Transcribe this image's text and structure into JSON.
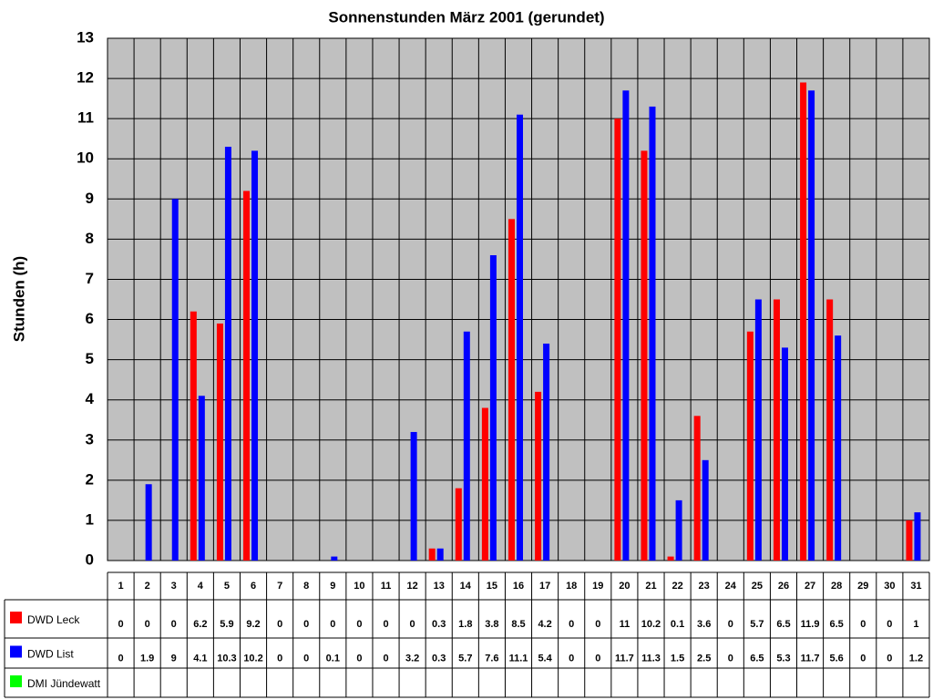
{
  "chart_data": {
    "type": "bar",
    "title": "Sonnenstunden März 2001 (gerundet)",
    "y_label": "Stunden (h)",
    "categories": [
      "1",
      "2",
      "3",
      "4",
      "5",
      "6",
      "7",
      "8",
      "9",
      "10",
      "11",
      "12",
      "13",
      "14",
      "15",
      "16",
      "17",
      "18",
      "19",
      "20",
      "21",
      "22",
      "23",
      "24",
      "25",
      "26",
      "27",
      "28",
      "29",
      "30",
      "31"
    ],
    "series": [
      {
        "name": "DWD Leck",
        "color": "#ff0000",
        "values": [
          0,
          0,
          0,
          6.2,
          5.9,
          9.2,
          0,
          0,
          0,
          0,
          0,
          0,
          0.3,
          1.8,
          3.8,
          8.5,
          4.2,
          0,
          0,
          11,
          10.2,
          0.1,
          3.6,
          0,
          5.7,
          6.5,
          11.9,
          6.5,
          0,
          0,
          1
        ]
      },
      {
        "name": "DWD List",
        "color": "#0000ff",
        "values": [
          0,
          1.9,
          9,
          4.1,
          10.3,
          10.2,
          0,
          0,
          0.1,
          0,
          0,
          3.2,
          0.3,
          5.7,
          7.6,
          11.1,
          5.4,
          0,
          0,
          11.7,
          11.3,
          1.5,
          2.5,
          0,
          6.5,
          5.3,
          11.7,
          5.6,
          0,
          0,
          1.2
        ]
      },
      {
        "name": "DMI Jündewatt",
        "color": "#00ff00",
        "values": [
          null,
          null,
          null,
          null,
          null,
          null,
          null,
          null,
          null,
          null,
          null,
          null,
          null,
          null,
          null,
          null,
          null,
          null,
          null,
          null,
          null,
          null,
          null,
          null,
          null,
          null,
          null,
          null,
          null,
          null,
          null
        ]
      }
    ],
    "ylim": [
      0,
      13
    ],
    "yticks": [
      0,
      1,
      2,
      3,
      4,
      5,
      6,
      7,
      8,
      9,
      10,
      11,
      12,
      13
    ],
    "grid": true,
    "plot_background": "#c0c0c0"
  }
}
